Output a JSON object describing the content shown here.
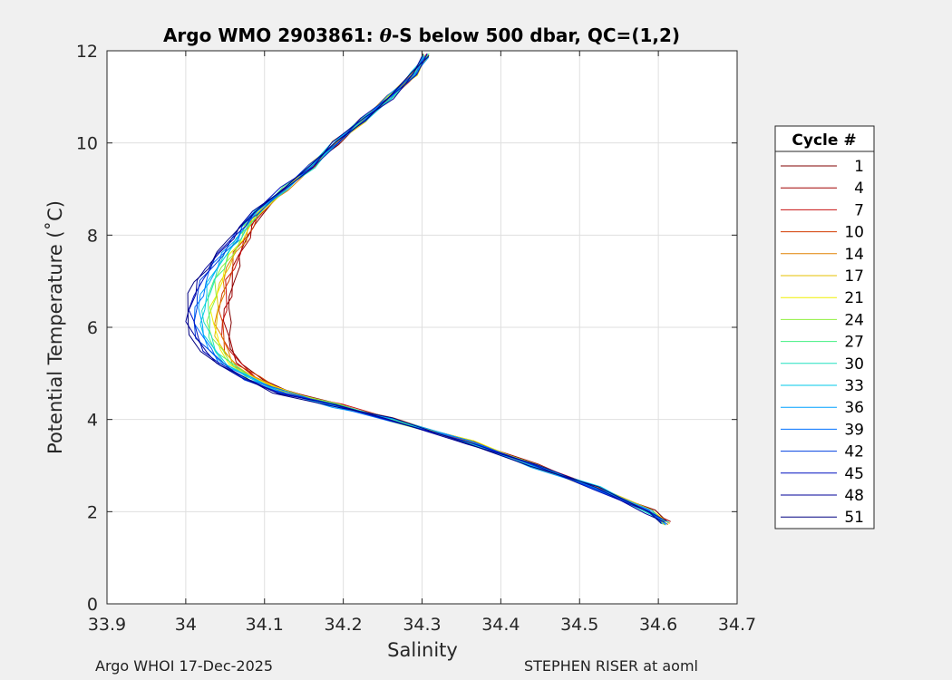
{
  "chart_data": {
    "type": "line",
    "title_prefix": "Argo WMO 2903861: ",
    "title_theta": "θ",
    "title_suffix": "-S below 500 dbar,  QC=(1,2)",
    "xlabel": "Salinity",
    "ylabel": "Potential Temperature (˚C)",
    "xlim": [
      33.9,
      34.7
    ],
    "ylim": [
      0,
      12
    ],
    "xticks": [
      "33.9",
      "34",
      "34.1",
      "34.2",
      "34.3",
      "34.4",
      "34.5",
      "34.6",
      "34.7"
    ],
    "yticks": [
      "0",
      "2",
      "4",
      "6",
      "8",
      "10",
      "12"
    ],
    "grid": true,
    "legend": {
      "title": "Cycle #",
      "placement": "outside-right",
      "entries": [
        {
          "label": "1",
          "color": "#800000"
        },
        {
          "label": "4",
          "color": "#a00000"
        },
        {
          "label": "7",
          "color": "#c81010"
        },
        {
          "label": "10",
          "color": "#d23c00"
        },
        {
          "label": "14",
          "color": "#e08000"
        },
        {
          "label": "17",
          "color": "#e6c000"
        },
        {
          "label": "21",
          "color": "#f0f000"
        },
        {
          "label": "24",
          "color": "#90f040"
        },
        {
          "label": "27",
          "color": "#40f080"
        },
        {
          "label": "30",
          "color": "#20e0c0"
        },
        {
          "label": "33",
          "color": "#00c8e8"
        },
        {
          "label": "36",
          "color": "#00a0ff"
        },
        {
          "label": "39",
          "color": "#0070ff"
        },
        {
          "label": "42",
          "color": "#0040e0"
        },
        {
          "label": "45",
          "color": "#0010c0"
        },
        {
          "label": "48",
          "color": "#00009a"
        },
        {
          "label": "51",
          "color": "#000080"
        }
      ]
    },
    "series_model": {
      "description": "approximate theta-S profile per cycle; salinity at given potential temperature",
      "theta": [
        1.75,
        2.0,
        2.5,
        3.0,
        3.5,
        4.0,
        4.3,
        4.6,
        4.9,
        5.2,
        5.5,
        5.8,
        6.1,
        6.4,
        6.7,
        7.0,
        7.3,
        7.6,
        7.9,
        8.2,
        8.5,
        9.0,
        9.5,
        10.0,
        10.5,
        11.0,
        11.5,
        11.9
      ],
      "salinity_mean": [
        34.605,
        34.585,
        34.52,
        34.44,
        34.36,
        34.26,
        34.19,
        34.12,
        34.08,
        34.05,
        34.035,
        34.025,
        34.02,
        34.02,
        34.025,
        34.03,
        34.04,
        34.05,
        34.065,
        34.075,
        34.09,
        34.125,
        34.16,
        34.19,
        34.225,
        34.26,
        34.29,
        34.305
      ]
    }
  },
  "footer": {
    "left": "Argo WHOI 17-Dec-2025",
    "right": "STEPHEN RISER at aoml"
  }
}
